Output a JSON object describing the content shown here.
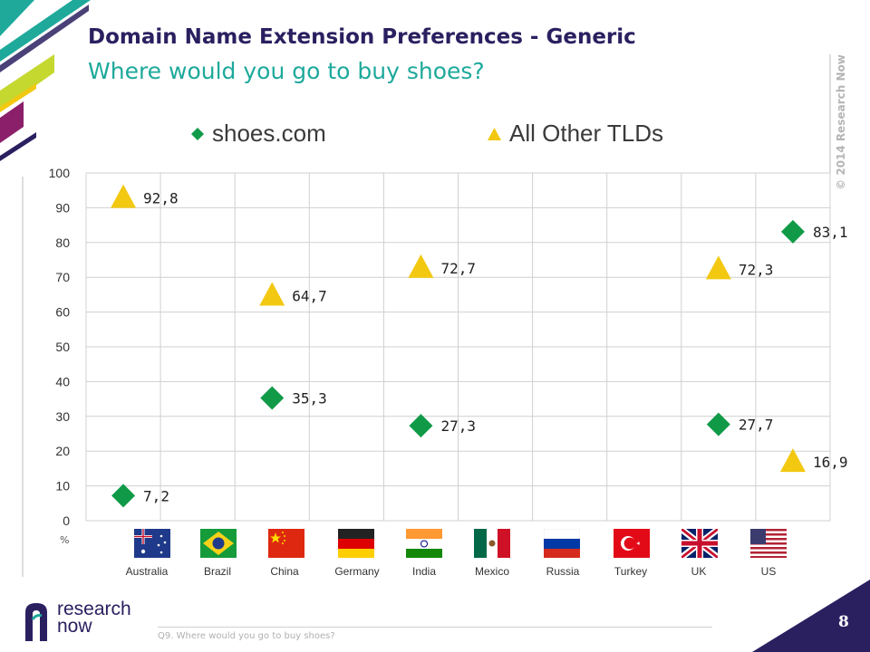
{
  "header": {
    "title": "Domain Name Extension Preferences - Generic",
    "subtitle": "Where would you go to buy shoes?"
  },
  "copyright": "© 2014 Research Now",
  "colors": {
    "shoes_com": "#109a48",
    "other_tlds": "#f2c811",
    "title": "#2a2060",
    "subtitle": "#1ea99b"
  },
  "chart_data": {
    "type": "scatter",
    "categories": [
      "Australia",
      "Brazil",
      "China",
      "Germany",
      "India",
      "Mexico",
      "Russia",
      "Turkey",
      "UK",
      "US"
    ],
    "series": [
      {
        "name": "shoes.com",
        "marker": "diamond",
        "values": [
          7.2,
          null,
          35.3,
          null,
          27.3,
          null,
          null,
          null,
          27.7,
          83.1
        ],
        "labels": [
          "7,2",
          "",
          "35,3",
          "",
          "27,3",
          "",
          "",
          "",
          "27,7",
          "83,1"
        ]
      },
      {
        "name": "All Other TLDs",
        "marker": "triangle",
        "values": [
          92.8,
          null,
          64.7,
          null,
          72.7,
          null,
          null,
          null,
          72.3,
          16.9
        ],
        "labels": [
          "92,8",
          "",
          "64,7",
          "",
          "72,7",
          "",
          "",
          "",
          "72,3",
          "16,9"
        ]
      }
    ],
    "ylim": [
      0,
      100
    ],
    "yticks": [
      "0",
      "10",
      "20",
      "30",
      "40",
      "50",
      "60",
      "70",
      "80",
      "90",
      "100"
    ],
    "ylabel": "%",
    "grid": true,
    "legend": "top"
  },
  "footer": {
    "question": "Q9. Where would you go to buy shoes?",
    "page_number": "8",
    "logo_line1": "research",
    "logo_line2": "now"
  }
}
